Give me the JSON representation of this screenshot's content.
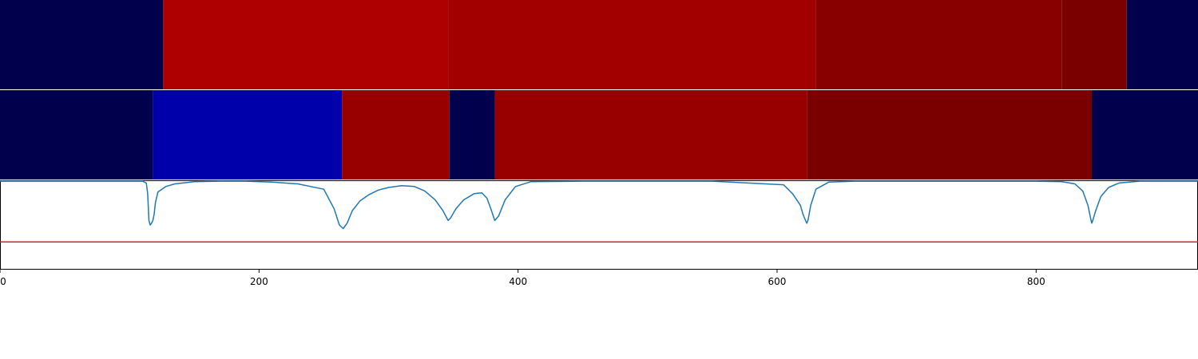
{
  "chart_data": [
    {
      "type": "heatmap",
      "name": "segmentation-track-1",
      "xlim": [
        0,
        925
      ],
      "segments": [
        {
          "start": 0,
          "end": 126,
          "color": "#00004c"
        },
        {
          "start": 126,
          "end": 346,
          "color": "#ae0000"
        },
        {
          "start": 346,
          "end": 630,
          "color": "#a20000"
        },
        {
          "start": 630,
          "end": 820,
          "color": "#880000"
        },
        {
          "start": 820,
          "end": 870,
          "color": "#7a0000"
        },
        {
          "start": 870,
          "end": 925,
          "color": "#00004c"
        }
      ]
    },
    {
      "type": "heatmap",
      "name": "segmentation-track-2",
      "xlim": [
        0,
        925
      ],
      "segments": [
        {
          "start": 0,
          "end": 118,
          "color": "#00004c"
        },
        {
          "start": 118,
          "end": 264,
          "color": "#0000aa"
        },
        {
          "start": 264,
          "end": 347,
          "color": "#980000"
        },
        {
          "start": 347,
          "end": 382,
          "color": "#00004c"
        },
        {
          "start": 382,
          "end": 623,
          "color": "#980000"
        },
        {
          "start": 623,
          "end": 843,
          "color": "#7a0000"
        },
        {
          "start": 843,
          "end": 925,
          "color": "#00004c"
        }
      ]
    },
    {
      "type": "line",
      "name": "score-track",
      "xlim": [
        0,
        925
      ],
      "ylim": [
        0,
        1
      ],
      "threshold": {
        "value": 0.31,
        "color": "#e41a1c"
      },
      "line_color": "#1f77b4",
      "grid": false,
      "x_ticks": [
        0,
        200,
        400,
        600,
        800
      ],
      "x_tick_labels": [
        "0",
        "200",
        "400",
        "600",
        "800"
      ],
      "x": [
        0,
        110,
        113,
        114,
        115,
        116,
        117,
        118,
        119,
        120,
        122,
        128,
        135,
        150,
        170,
        190,
        210,
        230,
        250,
        258,
        262,
        265,
        268,
        272,
        278,
        285,
        292,
        300,
        310,
        320,
        328,
        336,
        342,
        346,
        348,
        352,
        358,
        366,
        372,
        376,
        379,
        382,
        385,
        390,
        398,
        410,
        450,
        550,
        605,
        612,
        618,
        620,
        622,
        623,
        624,
        626,
        630,
        640,
        660,
        760,
        800,
        820,
        830,
        836,
        840,
        842,
        843,
        844,
        846,
        850,
        856,
        864,
        880,
        925
      ],
      "y": [
        0.99,
        0.99,
        0.97,
        0.85,
        0.55,
        0.5,
        0.52,
        0.55,
        0.62,
        0.75,
        0.87,
        0.93,
        0.96,
        0.985,
        0.99,
        0.99,
        0.98,
        0.96,
        0.9,
        0.68,
        0.5,
        0.46,
        0.52,
        0.66,
        0.77,
        0.84,
        0.89,
        0.92,
        0.94,
        0.93,
        0.88,
        0.78,
        0.66,
        0.55,
        0.58,
        0.68,
        0.78,
        0.85,
        0.86,
        0.8,
        0.68,
        0.55,
        0.6,
        0.78,
        0.93,
        0.985,
        0.99,
        0.99,
        0.95,
        0.85,
        0.72,
        0.62,
        0.55,
        0.52,
        0.56,
        0.72,
        0.9,
        0.98,
        0.99,
        0.99,
        0.99,
        0.985,
        0.96,
        0.88,
        0.72,
        0.58,
        0.52,
        0.56,
        0.66,
        0.82,
        0.92,
        0.97,
        0.99,
        0.99
      ]
    }
  ]
}
